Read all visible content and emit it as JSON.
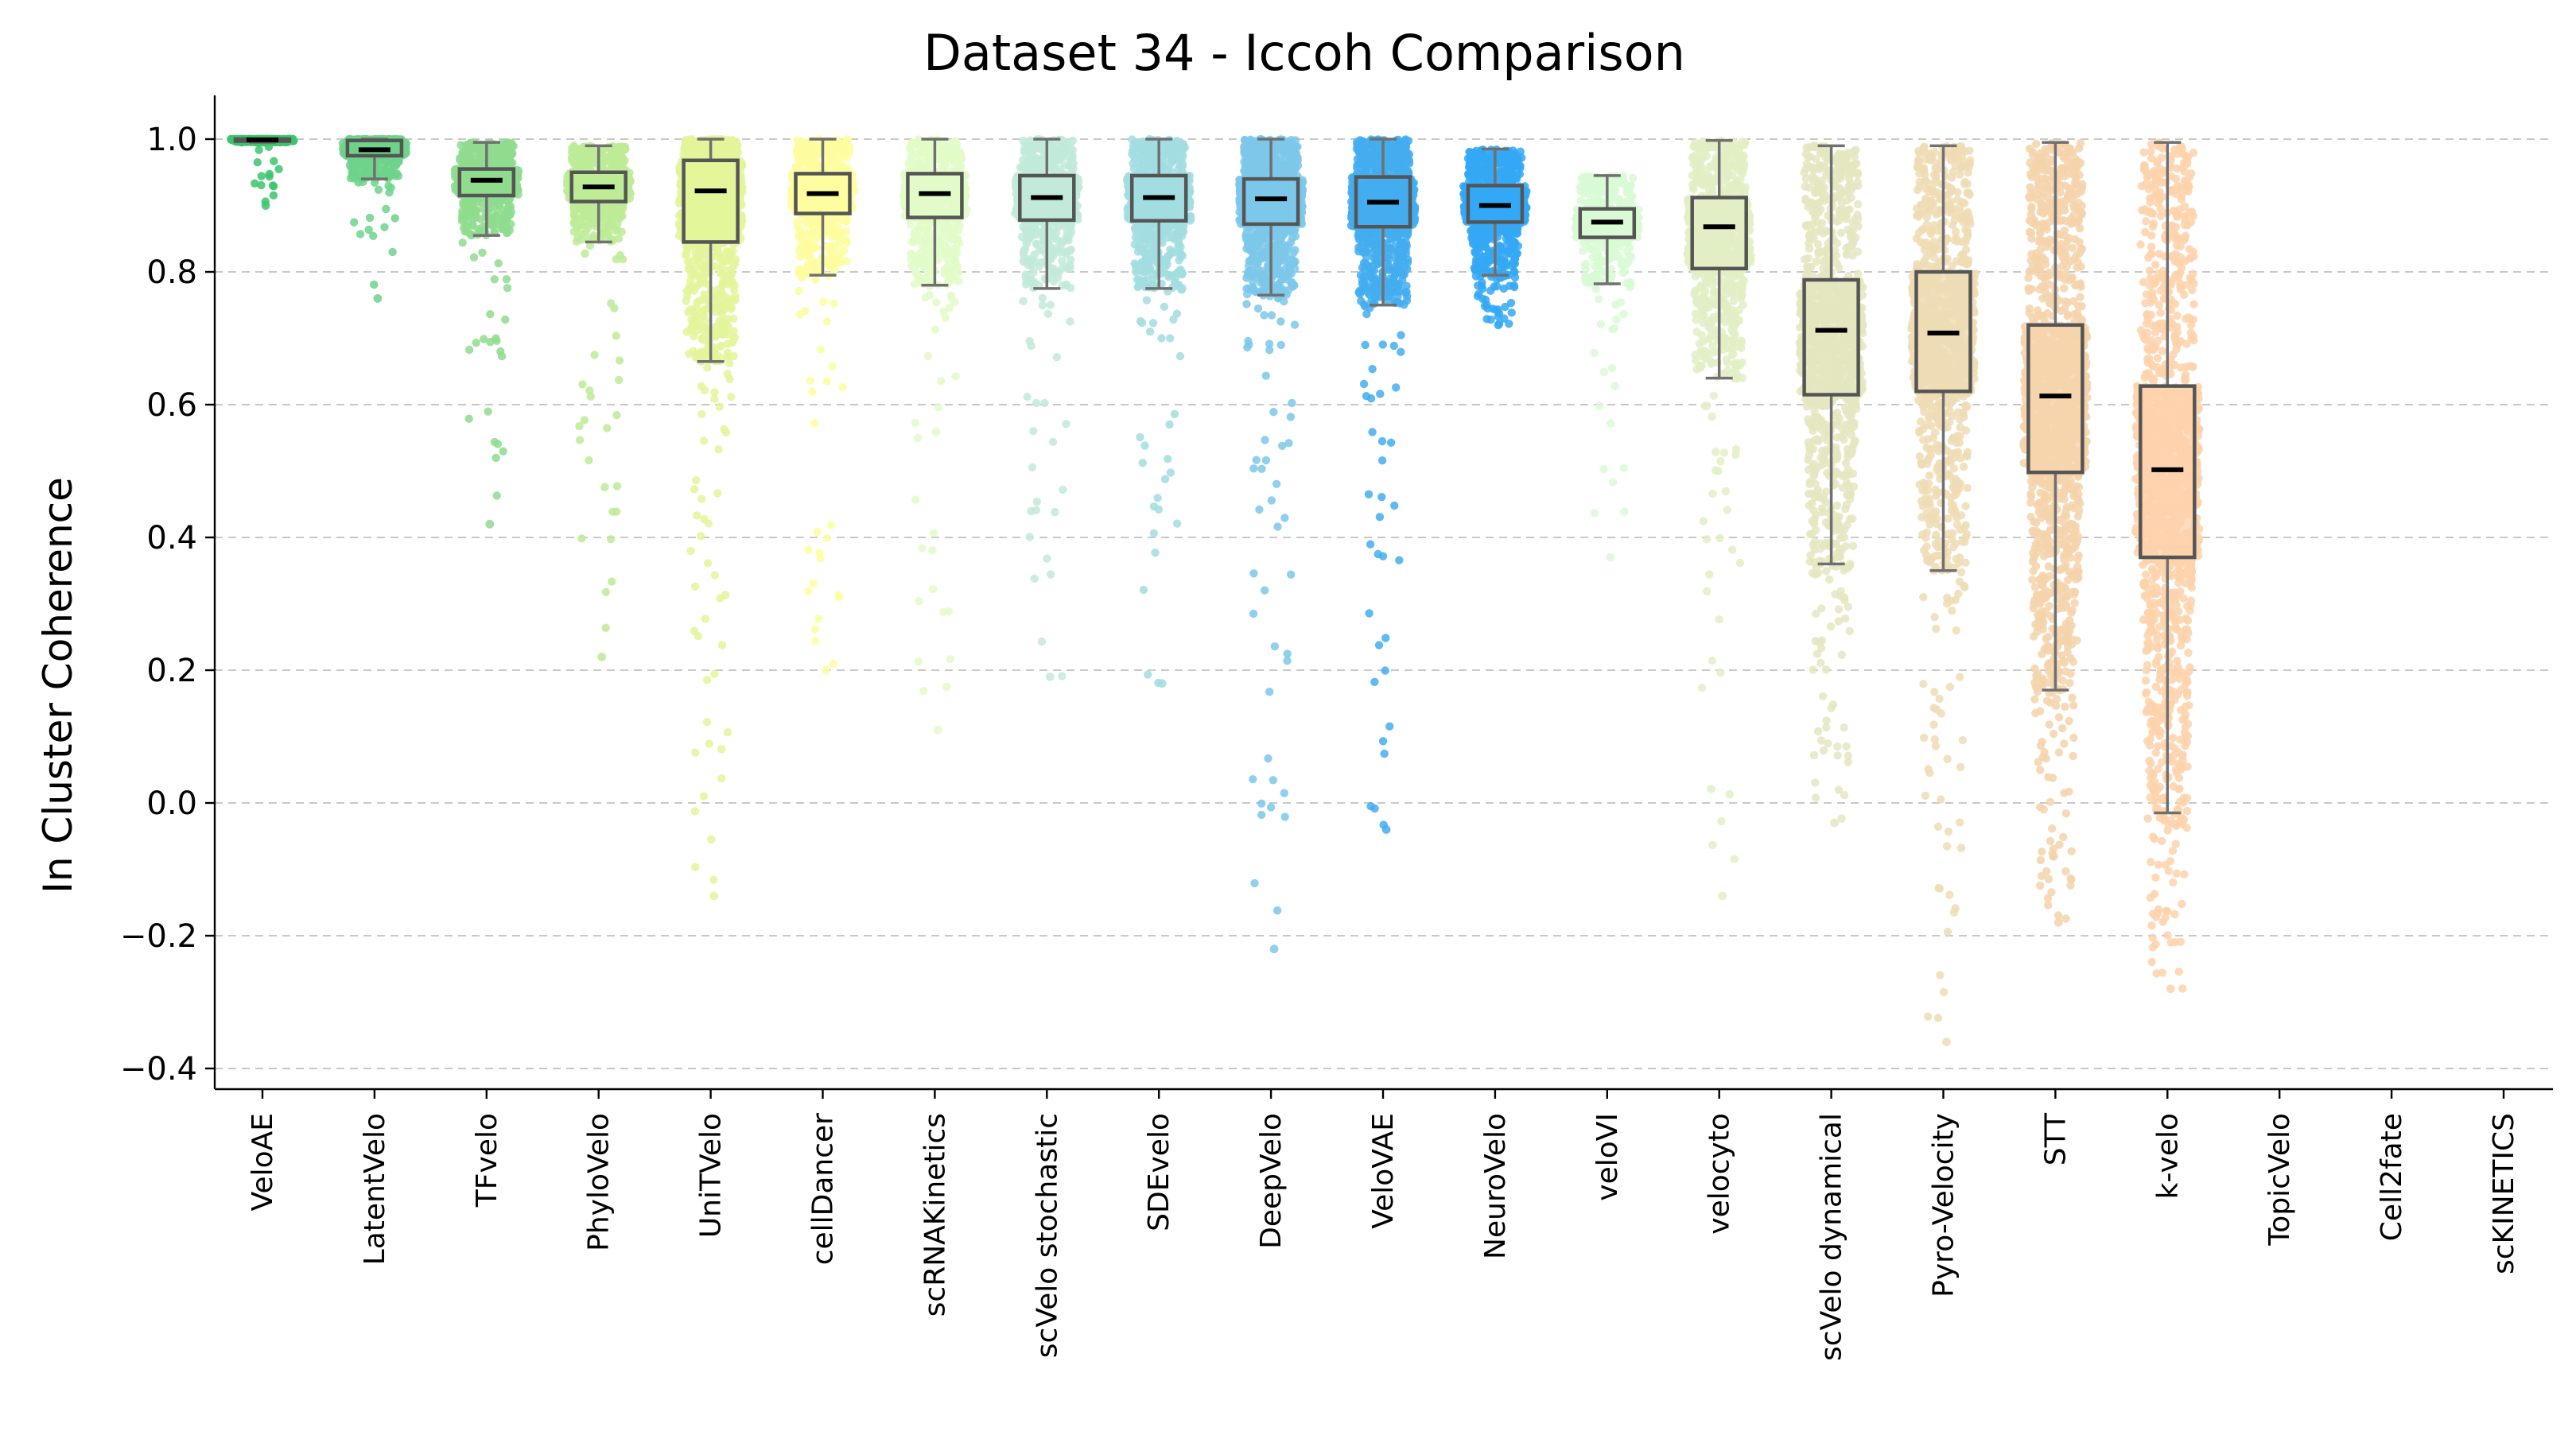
{
  "chart_data": {
    "type": "box+strip",
    "title": "Dataset 34 - Iccoh Comparison",
    "xlabel": "",
    "ylabel": "In Cluster Coherence",
    "ylim": [
      -0.43,
      1.07
    ],
    "yticks": [
      -0.4,
      -0.2,
      0.0,
      0.2,
      0.4,
      0.6,
      0.8,
      1.0
    ],
    "ytick_labels": [
      "−0.4",
      "−0.2",
      "0.0",
      "0.2",
      "0.4",
      "0.6",
      "0.8",
      "1.0"
    ],
    "grid": "y-dashed",
    "categories": [
      "VeloAE",
      "LatentVelo",
      "TFvelo",
      "PhyloVelo",
      "UniTVelo",
      "cellDancer",
      "scRNAKinetics",
      "scVelo stochastic",
      "SDEvelo",
      "DeepVelo",
      "VeloVAE",
      "NeuroVelo",
      "veloVI",
      "velocyto",
      "scVelo dynamical",
      "Pyro-Velocity",
      "STT",
      "k-velo",
      "TopicVelo",
      "Cell2fate",
      "scKINETICS"
    ],
    "colors": [
      "#3cc46c",
      "#6fd28b",
      "#8fdc8f",
      "#bdeb96",
      "#e3f59a",
      "#fdfda0",
      "#e2fbc8",
      "#c2ead9",
      "#a2dde0",
      "#7cc8ea",
      "#43adf0",
      "#34a8f5",
      "#d8fad4",
      "#e2eec4",
      "#e4e6c0",
      "#eedcb4",
      "#f5d4ac",
      "#fdd2ac",
      "#cccccc",
      "#cccccc",
      "#cccccc"
    ],
    "box_stats": [
      {
        "name": "VeloAE",
        "whislo": 0.995,
        "q1": 0.997,
        "med": 0.999,
        "q3": 1.0,
        "whishi": 1.0,
        "fmin": 0.9,
        "n": 400
      },
      {
        "name": "LatentVelo",
        "whislo": 0.94,
        "q1": 0.975,
        "med": 0.984,
        "q3": 0.998,
        "whishi": 1.0,
        "fmin": 0.76,
        "n": 450
      },
      {
        "name": "TFvelo",
        "whislo": 0.855,
        "q1": 0.915,
        "med": 0.938,
        "q3": 0.955,
        "whishi": 0.995,
        "fmin": 0.42,
        "n": 700
      },
      {
        "name": "PhyloVelo",
        "whislo": 0.845,
        "q1": 0.906,
        "med": 0.928,
        "q3": 0.95,
        "whishi": 0.99,
        "fmin": 0.22,
        "n": 650
      },
      {
        "name": "UniTVelo",
        "whislo": 0.665,
        "q1": 0.845,
        "med": 0.922,
        "q3": 0.968,
        "whishi": 1.0,
        "fmin": -0.14,
        "n": 1200
      },
      {
        "name": "cellDancer",
        "whislo": 0.795,
        "q1": 0.888,
        "med": 0.918,
        "q3": 0.948,
        "whishi": 1.0,
        "fmin": 0.2,
        "n": 700
      },
      {
        "name": "scRNAKinetics",
        "whislo": 0.78,
        "q1": 0.882,
        "med": 0.918,
        "q3": 0.948,
        "whishi": 1.0,
        "fmin": 0.11,
        "n": 650
      },
      {
        "name": "scVelo stochastic",
        "whislo": 0.775,
        "q1": 0.878,
        "med": 0.912,
        "q3": 0.945,
        "whishi": 1.0,
        "fmin": 0.19,
        "n": 750
      },
      {
        "name": "SDEvelo",
        "whislo": 0.775,
        "q1": 0.877,
        "med": 0.912,
        "q3": 0.945,
        "whishi": 1.0,
        "fmin": 0.18,
        "n": 800
      },
      {
        "name": "DeepVelo",
        "whislo": 0.765,
        "q1": 0.872,
        "med": 0.91,
        "q3": 0.94,
        "whishi": 1.0,
        "fmin": -0.22,
        "n": 1300
      },
      {
        "name": "VeloVAE",
        "whislo": 0.75,
        "q1": 0.868,
        "med": 0.905,
        "q3": 0.943,
        "whishi": 1.0,
        "fmin": -0.04,
        "n": 1100
      },
      {
        "name": "NeuroVelo",
        "whislo": 0.795,
        "q1": 0.875,
        "med": 0.9,
        "q3": 0.93,
        "whishi": 0.985,
        "fmin": 0.72,
        "n": 900
      },
      {
        "name": "veloVI",
        "whislo": 0.782,
        "q1": 0.852,
        "med": 0.875,
        "q3": 0.895,
        "whishi": 0.945,
        "fmin": 0.37,
        "n": 450
      },
      {
        "name": "velocyto",
        "whislo": 0.64,
        "q1": 0.805,
        "med": 0.868,
        "q3": 0.912,
        "whishi": 0.998,
        "fmin": -0.14,
        "n": 900
      },
      {
        "name": "scVelo dynamical",
        "whislo": 0.36,
        "q1": 0.615,
        "med": 0.712,
        "q3": 0.788,
        "whishi": 0.99,
        "fmin": -0.03,
        "n": 1100
      },
      {
        "name": "Pyro-Velocity",
        "whislo": 0.35,
        "q1": 0.62,
        "med": 0.708,
        "q3": 0.8,
        "whishi": 0.99,
        "fmin": -0.36,
        "n": 1100
      },
      {
        "name": "STT",
        "whislo": 0.17,
        "q1": 0.498,
        "med": 0.613,
        "q3": 0.72,
        "whishi": 0.995,
        "fmin": -0.18,
        "n": 1600
      },
      {
        "name": "k-velo",
        "whislo": -0.015,
        "q1": 0.37,
        "med": 0.502,
        "q3": 0.628,
        "whishi": 0.995,
        "fmin": -0.28,
        "n": 1500
      },
      {
        "name": "TopicVelo",
        "empty": true
      },
      {
        "name": "Cell2fate",
        "empty": true
      },
      {
        "name": "scKINETICS",
        "empty": true
      }
    ]
  }
}
